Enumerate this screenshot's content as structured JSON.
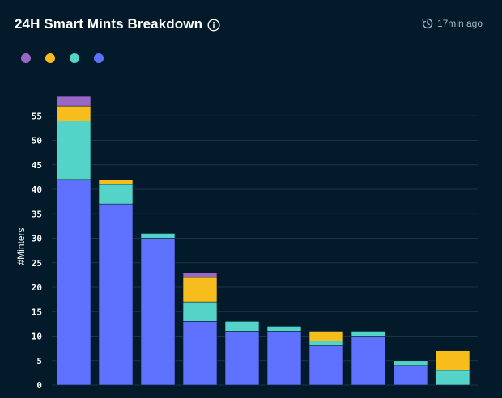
{
  "header": {
    "title": "24H Smart Mints Breakdown",
    "updated": "17min ago",
    "info_icon": "info-icon",
    "clock_icon": "clock-history-icon"
  },
  "colors": {
    "background": "#021a2a",
    "grid": "#1c3545",
    "axis_text": "#ffffff"
  },
  "chart_data": {
    "type": "bar",
    "stacked": true,
    "xlabel": "",
    "ylabel": "#Minters",
    "ylim": [
      0,
      60
    ],
    "yticks": [
      0,
      5,
      10,
      15,
      20,
      25,
      30,
      35,
      40,
      45,
      50,
      55
    ],
    "grid": true,
    "legend": "top-left",
    "categories": [
      "",
      "",
      "",
      "",
      "",
      "",
      "",
      "",
      "",
      ""
    ],
    "series": [
      {
        "color": "#5f72ff",
        "values": [
          42,
          37,
          30,
          13,
          11,
          11,
          8,
          10,
          4,
          0
        ]
      },
      {
        "color": "#54d3c9",
        "values": [
          12,
          4,
          1,
          4,
          2,
          1,
          1,
          1,
          1,
          3
        ]
      },
      {
        "color": "#f7bd1d",
        "values": [
          3,
          1,
          0,
          5,
          0,
          0,
          2,
          0,
          0,
          4
        ]
      },
      {
        "color": "#9a67c9",
        "values": [
          2,
          0,
          0,
          1,
          0,
          0,
          0,
          0,
          0,
          0
        ]
      }
    ]
  }
}
